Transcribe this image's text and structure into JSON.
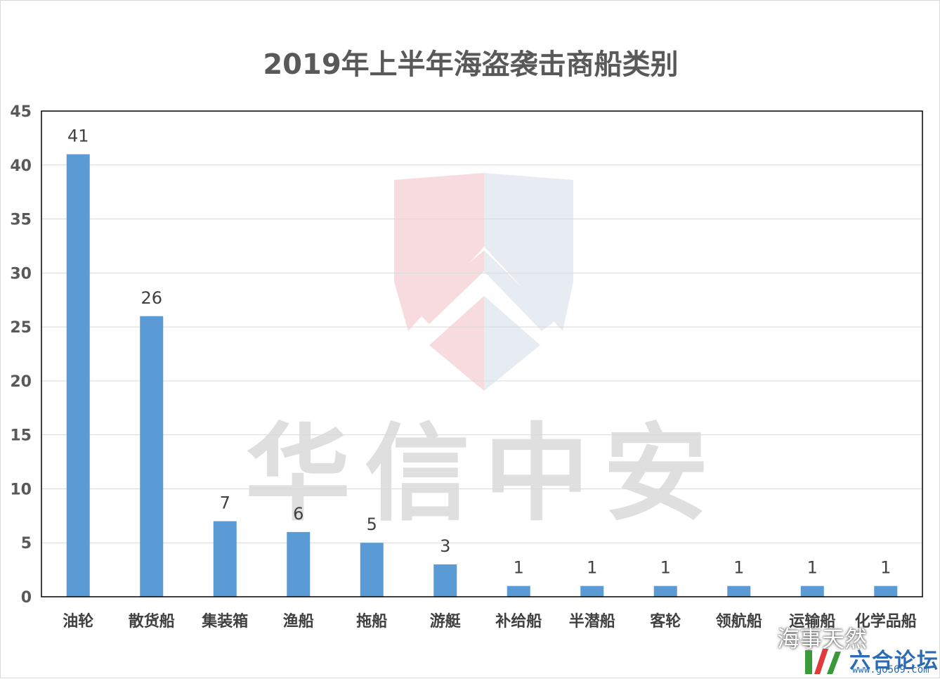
{
  "watermark": {
    "text": "华信中安",
    "wechat_text": "海事天然",
    "forum_name": "六合论坛",
    "forum_url": "www.go569.com"
  },
  "chart_data": {
    "type": "bar",
    "title": "2019年上半年海盗袭击商船类别",
    "xlabel": "",
    "ylabel": "",
    "categories": [
      "油轮",
      "散货船",
      "集装箱",
      "渔船",
      "拖船",
      "游艇",
      "补给船",
      "半潜船",
      "客轮",
      "领航船",
      "运输船",
      "化学品船"
    ],
    "values": [
      41,
      26,
      7,
      6,
      5,
      3,
      1,
      1,
      1,
      1,
      1,
      1
    ],
    "ylim": [
      0,
      45
    ],
    "yticks": [
      0,
      5,
      10,
      15,
      20,
      25,
      30,
      35,
      40,
      45
    ],
    "grid": true,
    "legend": "none",
    "data_labels": true,
    "bar_color": "#5b9bd5"
  }
}
